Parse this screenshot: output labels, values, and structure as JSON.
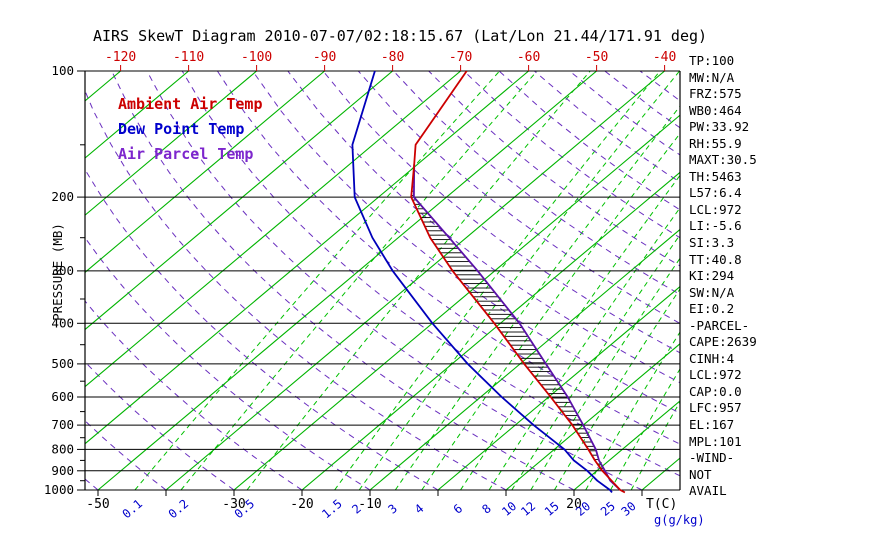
{
  "legend": [
    {
      "label": "Ambient Air Temp",
      "color": "#cc0000"
    },
    {
      "label": "Dew Point Temp",
      "color": "#0000cc"
    },
    {
      "label": "Air Parcel Temp",
      "color": "#7d26cd"
    }
  ],
  "colors": {
    "ambient": "#cc0000",
    "dewpoint": "#0000bb",
    "parcel": "#5a11a8",
    "isotherm": "#00b400",
    "mixing_ratio": "#00c000",
    "adiabat": "#6a2fbf",
    "axis": "#000000",
    "top_labels": "#cc0000",
    "ratio_labels": "#0000cc"
  },
  "axes": {
    "y_label": "PRESSURE (MB)",
    "x_label": "T(C)",
    "ratio_label": "g(g/kg)",
    "pressure_ticks": [
      100,
      200,
      300,
      400,
      500,
      600,
      700,
      800,
      900,
      1000
    ],
    "top_temp_ticks": [
      -120,
      -110,
      -100,
      -90,
      -80,
      -70,
      -60,
      -50,
      -40
    ],
    "bottom_temp_labels": [
      -50,
      -30,
      -20,
      -10,
      20
    ],
    "mixing_ratio_labels": [
      0.1,
      0.2,
      0.5,
      1.5,
      2,
      3,
      4,
      6,
      8,
      10,
      12,
      15,
      20,
      25,
      30
    ]
  },
  "stats_panel": [
    "TP:100",
    "MW:N/A",
    "FRZ:575",
    "WB0:464",
    "PW:33.92",
    "RH:55.9",
    "MAXT:30.5",
    "TH:5463",
    "L57:6.4",
    "LCL:972",
    "LI:-5.6",
    "SI:3.3",
    "TT:40.8",
    "KI:294",
    "SW:N/A",
    "EI:0.2",
    "-PARCEL-",
    "CAPE:2639",
    "CINH:4",
    "LCL:972",
    "CAP:0.0",
    "LFC:957",
    "EL:167",
    "MPL:101",
    "-WIND-",
    "NOT",
    "AVAIL"
  ],
  "chart_data": {
    "type": "line",
    "title": "AIRS SkewT Diagram 2010-07-07/02:18:15.67 (Lat/Lon 21.44/171.91 deg)",
    "xlabel": "T(C)",
    "ylabel": "PRESSURE (MB)",
    "y_scale": "log",
    "ylim": [
      1013,
      100
    ],
    "top_axis_range_c": [
      -120,
      -40
    ],
    "grid": "skew-t log-p",
    "legend_position": "upper-left",
    "isotherms_c": {
      "min": -160,
      "max": 40,
      "step": 10
    },
    "dry_adiabats_theta_c": {
      "min": -50,
      "max": 180,
      "step": 10
    },
    "mixing_ratio_lines_gkg": [
      0.1,
      0.2,
      0.5,
      1.5,
      2,
      3,
      4,
      6,
      8,
      10,
      12,
      15,
      20,
      25,
      30
    ],
    "equilibrium_level_mb": 167,
    "cape_hatch_between": [
      "Air Parcel Temp",
      "Ambient Air Temp"
    ],
    "series": [
      {
        "name": "Ambient Air Temp",
        "color": "#cc0000",
        "points_p_t": [
          [
            1013,
            27.9
          ],
          [
            1000,
            26.8
          ],
          [
            950,
            23.9
          ],
          [
            900,
            20.8
          ],
          [
            850,
            17.9
          ],
          [
            800,
            15.0
          ],
          [
            700,
            8.4
          ],
          [
            600,
            0.3
          ],
          [
            500,
            -9.4
          ],
          [
            400,
            -20.9
          ],
          [
            300,
            -36.2
          ],
          [
            250,
            -45.3
          ],
          [
            200,
            -55.2
          ],
          [
            167,
            -60.5
          ],
          [
            150,
            -63.7
          ],
          [
            100,
            -69.1
          ]
        ]
      },
      {
        "name": "Dew Point Temp",
        "color": "#0000bb",
        "points_p_t": [
          [
            1013,
            26.0
          ],
          [
            1000,
            25.3
          ],
          [
            950,
            21.8
          ],
          [
            900,
            18.6
          ],
          [
            850,
            14.8
          ],
          [
            800,
            11.5
          ],
          [
            700,
            2.7
          ],
          [
            600,
            -6.9
          ],
          [
            500,
            -17.7
          ],
          [
            400,
            -30.0
          ],
          [
            300,
            -45.0
          ],
          [
            250,
            -53.8
          ],
          [
            200,
            -63.5
          ],
          [
            150,
            -73.0
          ],
          [
            100,
            -82.6
          ]
        ]
      },
      {
        "name": "Air Parcel Temp",
        "color": "#5a11a8",
        "points_p_t": [
          [
            1000,
            26.8
          ],
          [
            950,
            23.7
          ],
          [
            900,
            21.2
          ],
          [
            850,
            18.5
          ],
          [
            800,
            16.1
          ],
          [
            700,
            10.0
          ],
          [
            600,
            2.8
          ],
          [
            500,
            -6.2
          ],
          [
            400,
            -17.2
          ],
          [
            300,
            -32.5
          ],
          [
            250,
            -42.5
          ],
          [
            200,
            -54.8
          ],
          [
            167,
            -60.5
          ]
        ]
      }
    ]
  }
}
